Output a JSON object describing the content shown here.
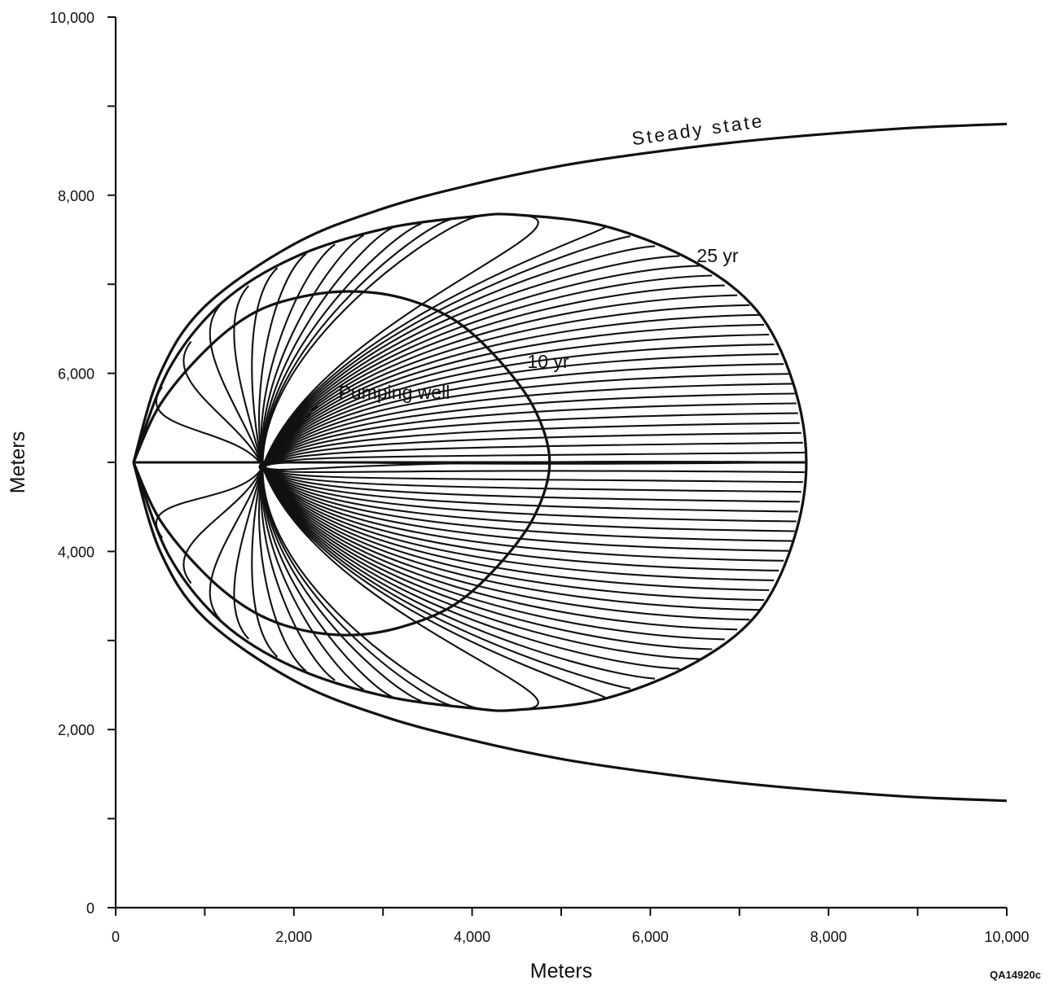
{
  "chart_data": {
    "type": "line",
    "title": "",
    "xlabel": "Meters",
    "ylabel": "Meters",
    "xlim": [
      0,
      10000
    ],
    "ylim": [
      0,
      10000
    ],
    "xticks": [
      0,
      2000,
      4000,
      6000,
      8000,
      10000
    ],
    "xtick_labels": [
      "0",
      "2,000",
      "4,000",
      "6,000",
      "8,000",
      "10,000"
    ],
    "yticks": [
      0,
      2000,
      4000,
      6000,
      8000,
      10000
    ],
    "ytick_labels": [
      "0",
      "2,000",
      "4,000",
      "6,000",
      "8,000",
      "10,000"
    ],
    "grid": false,
    "well": {
      "x": 1650,
      "y": 4950
    },
    "series": [
      {
        "name": "Steady state",
        "upper": {
          "x": [
            200,
            500,
            1000,
            2000,
            3000,
            4000,
            5000,
            6000,
            7000,
            8000,
            9000,
            10000
          ],
          "y": [
            5000,
            6000,
            6750,
            7450,
            7850,
            8120,
            8330,
            8480,
            8600,
            8690,
            8760,
            8800
          ]
        },
        "lower": {
          "x": [
            200,
            500,
            1000,
            2000,
            3000,
            4000,
            5000,
            6000,
            7000,
            8000,
            9000,
            10000
          ],
          "y": [
            5000,
            4000,
            3250,
            2550,
            2150,
            1880,
            1670,
            1520,
            1400,
            1310,
            1240,
            1200
          ]
        }
      },
      {
        "name": "25 yr",
        "upper": {
          "x": [
            200,
            600,
            1200,
            2000,
            3000,
            4000,
            4500,
            5500,
            6500,
            7200,
            7600,
            7750
          ],
          "y": [
            5000,
            6050,
            6800,
            7300,
            7620,
            7760,
            7780,
            7650,
            7250,
            6700,
            5900,
            5000
          ]
        },
        "lower": {
          "x": [
            200,
            600,
            1200,
            2000,
            3000,
            4000,
            4500,
            5500,
            6500,
            7200,
            7600,
            7750
          ],
          "y": [
            5000,
            3950,
            3200,
            2700,
            2380,
            2240,
            2220,
            2350,
            2750,
            3300,
            4100,
            5000
          ]
        }
      },
      {
        "name": "10 yr",
        "upper": {
          "x": [
            200,
            500,
            1000,
            1500,
            2000,
            2600,
            3200,
            3800,
            4300,
            4700,
            4870
          ],
          "y": [
            5000,
            5650,
            6250,
            6650,
            6840,
            6920,
            6850,
            6600,
            6150,
            5600,
            5000
          ]
        },
        "lower": {
          "x": [
            200,
            500,
            1000,
            1500,
            2000,
            2600,
            3200,
            3800,
            4300,
            4700,
            4870
          ],
          "y": [
            5000,
            4350,
            3750,
            3350,
            3140,
            3060,
            3150,
            3400,
            3850,
            4400,
            5000
          ]
        }
      }
    ],
    "annotations": [
      "Steady state",
      "25 yr",
      "10 yr",
      "Pumping well"
    ]
  },
  "figure_code": "QA14920c"
}
